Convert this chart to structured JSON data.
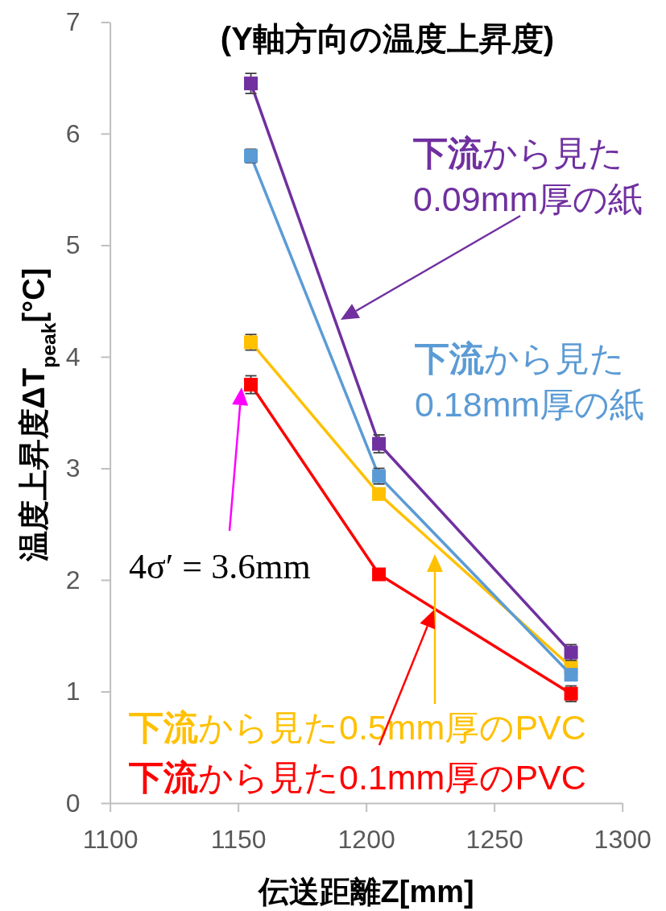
{
  "chart_data": {
    "type": "line",
    "title": "(Y軸方向の温度上昇度)",
    "xlabel": "伝送距離Z[mm]",
    "ylabel": "温度上昇度ΔT$_{peak}$[°C]",
    "x": [
      1155,
      1205,
      1280
    ],
    "xlim": [
      1100,
      1300
    ],
    "xticks": [
      1100,
      1150,
      1200,
      1250,
      1300
    ],
    "ylim": [
      0,
      7
    ],
    "yticks": [
      0,
      1,
      2,
      3,
      4,
      5,
      6,
      7
    ],
    "marker": "square",
    "line_style": "solid",
    "series": [
      {
        "name": "下流から見た0.09mm厚の紙",
        "color": "#7030a0",
        "values": [
          6.45,
          3.22,
          1.35
        ],
        "errors": [
          0.09,
          0.08,
          0.07
        ]
      },
      {
        "name": "下流から見た0.18mm厚の紙",
        "color": "#5b9bd5",
        "values": [
          5.8,
          2.93,
          1.15
        ],
        "errors": [
          0.06,
          0.07,
          null
        ]
      },
      {
        "name": "下流から見た0.5mm厚のPVC",
        "color": "#ffc000",
        "values": [
          4.13,
          2.77,
          1.22
        ],
        "errors": [
          0.07,
          null,
          null
        ]
      },
      {
        "name": "下流から見た0.1mm厚のPVC",
        "color": "#ff0000",
        "values": [
          3.75,
          2.05,
          0.98
        ],
        "errors": [
          0.08,
          null,
          0.07
        ]
      }
    ],
    "annotations": [
      "4σ′ = 3.6mm"
    ]
  }
}
